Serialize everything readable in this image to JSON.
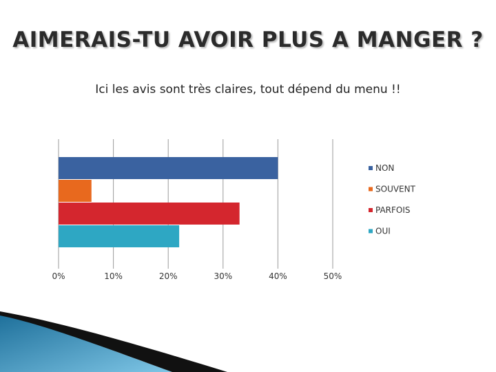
{
  "header": {
    "title": "AIMERAIS-TU AVOIR PLUS A MANGER ?",
    "subtitle": "Ici les avis sont très claires, tout dépend du menu !!"
  },
  "chart_data": {
    "type": "bar",
    "orientation": "horizontal",
    "title": "AIMERAIS-TU AVOIR PLUS A MANGER ?",
    "subtitle": "Ici les avis sont très claires, tout dépend du menu !!",
    "categories": [
      "NON",
      "SOUVENT",
      "PARFOIS",
      "OUI"
    ],
    "values": [
      40,
      6,
      33,
      22
    ],
    "unit": "%",
    "xlim": [
      0,
      50
    ],
    "ticks": [
      "0%",
      "10%",
      "20%",
      "30%",
      "40%",
      "50%"
    ],
    "colors": [
      "#3a62a0",
      "#e8691e",
      "#d4262e",
      "#2ea7c3"
    ],
    "grid": "vertical",
    "legend": "right"
  }
}
